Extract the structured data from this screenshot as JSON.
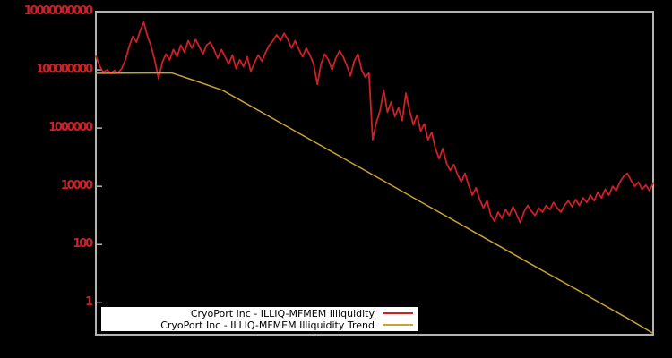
{
  "colors": {
    "background": "#000000",
    "frame": "#b4b4b4",
    "tick_label": "#cc2127",
    "series_red": "#cc2127",
    "series_gold": "#c8a232",
    "legend_background": "#ffffff",
    "legend_text": "#000000"
  },
  "legend": {
    "entries": [
      {
        "label": "CryoPort Inc - ILLIQ-MFMEM Illiquidity",
        "color": "#cc2127"
      },
      {
        "label": "CryoPort Inc - ILLIQ-MFMEM Illiquidity Trend",
        "color": "#c8a232"
      }
    ]
  },
  "chart_data": {
    "type": "line",
    "title": "",
    "xlabel": "",
    "ylabel": "",
    "y_scale": "log",
    "ylim": [
      0.08,
      10000000000.0
    ],
    "grid": false,
    "legend_position": "bottom-center",
    "y_ticks": [
      {
        "label": "10000000000",
        "value": 10000000000.0
      },
      {
        "label": "100000000",
        "value": 100000000.0
      },
      {
        "label": "1000000",
        "value": 1000000.0
      },
      {
        "label": "10000",
        "value": 10000.0
      },
      {
        "label": "100",
        "value": 100.0
      },
      {
        "label": "1",
        "value": 1
      }
    ],
    "series": [
      {
        "name": "CryoPort Inc - ILLIQ-MFMEM Illiquidity",
        "color": "#cc2127",
        "values": [
          290000000.0,
          140000000.0,
          83000000.0,
          100000000.0,
          76000000.0,
          95000000.0,
          79000000.0,
          110000000.0,
          220000000.0,
          630000000.0,
          1400000000.0,
          890000000.0,
          2200000000.0,
          4300000000.0,
          1400000000.0,
          630000000.0,
          200000000.0,
          50000000.0,
          180000000.0,
          350000000.0,
          220000000.0,
          500000000.0,
          280000000.0,
          710000000.0,
          400000000.0,
          1000000000.0,
          560000000.0,
          1100000000.0,
          630000000.0,
          350000000.0,
          710000000.0,
          890000000.0,
          500000000.0,
          250000000.0,
          500000000.0,
          280000000.0,
          160000000.0,
          320000000.0,
          110000000.0,
          220000000.0,
          130000000.0,
          280000000.0,
          89000000.0,
          180000000.0,
          320000000.0,
          200000000.0,
          400000000.0,
          710000000.0,
          1000000000.0,
          1600000000.0,
          1000000000.0,
          1800000000.0,
          1100000000.0,
          560000000.0,
          1000000000.0,
          500000000.0,
          280000000.0,
          560000000.0,
          320000000.0,
          160000000.0,
          32000000.0,
          160000000.0,
          350000000.0,
          220000000.0,
          100000000.0,
          250000000.0,
          450000000.0,
          280000000.0,
          140000000.0,
          63000000.0,
          200000000.0,
          350000000.0,
          100000000.0,
          56000000.0,
          79000000.0,
          400000.0,
          1600000.0,
          4000000.0,
          20000000.0,
          3500000.0,
          7900000.0,
          2500000.0,
          5000000.0,
          1800000.0,
          16000000.0,
          4000000.0,
          1300000.0,
          2800000.0,
          790000.0,
          1400000.0,
          400000.0,
          710000.0,
          200000.0,
          89000.0,
          200000.0,
          63000.0,
          35000.0,
          56000.0,
          25000.0,
          14000.0,
          28000.0,
          11000.0,
          5000,
          8900,
          3500,
          1800,
          3200,
          1000,
          630,
          1300,
          790,
          1600,
          1000,
          2000,
          1100,
          560,
          1300,
          2200,
          1400,
          1000,
          1800,
          1300,
          2200,
          1600,
          2800,
          1800,
          1300,
          2200,
          3200,
          2000,
          3500,
          2200,
          4000,
          2800,
          5000,
          3200,
          6300,
          4000,
          7900,
          5000,
          10000,
          7100,
          14000,
          22000,
          28000,
          16000,
          10000,
          14000,
          7900,
          11000,
          7100,
          13000
        ]
      },
      {
        "name": "CryoPort Inc - ILLIQ-MFMEM Illiquidity Trend",
        "color": "#c8a232",
        "values": [
          76000000.0,
          77000000.0,
          78000000.0,
          78000000.0,
          40000000.0,
          20000000.0,
          6500000.0,
          2100000.0,
          680000.0,
          220000.0,
          71000.0,
          23000.0,
          7400,
          2400,
          780,
          250,
          81,
          26,
          8.5,
          2.8,
          0.89,
          0.29,
          0.089
        ]
      }
    ]
  }
}
